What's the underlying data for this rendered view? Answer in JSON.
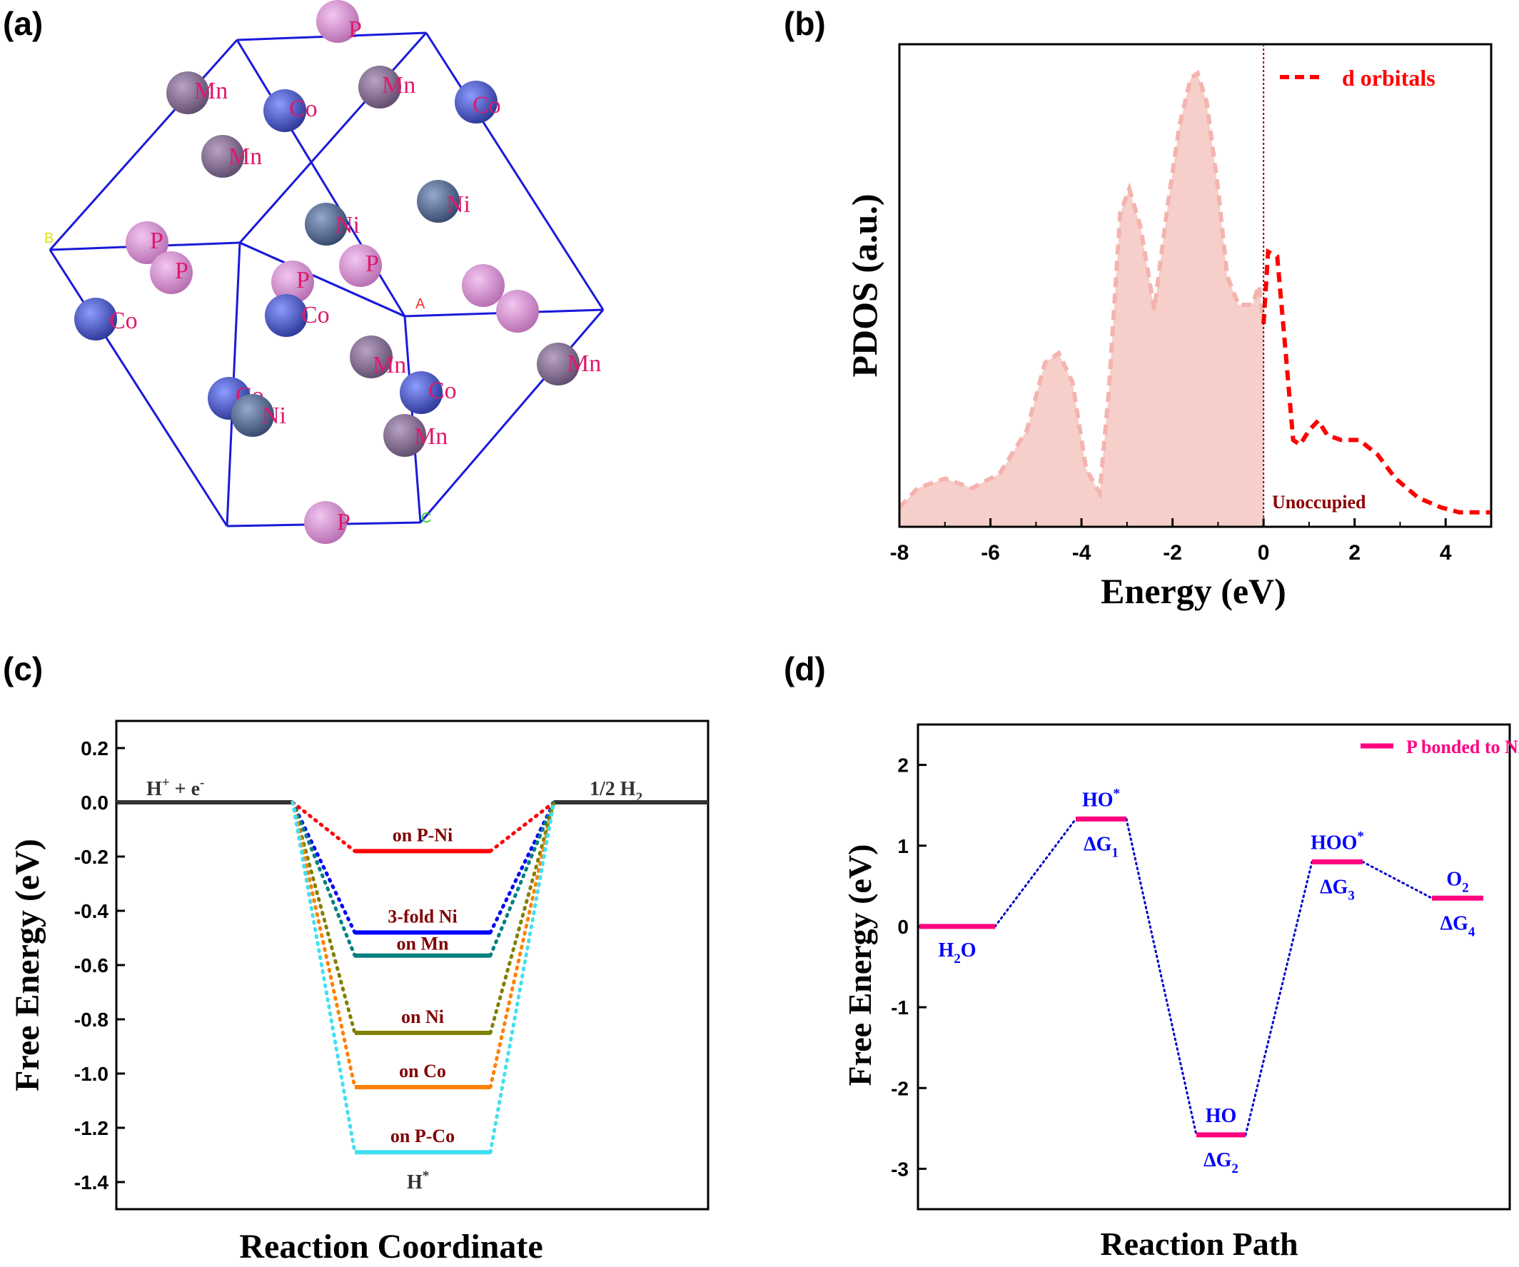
{
  "panels": {
    "a": "(a)",
    "b": "(b)",
    "c": "(c)",
    "d": "(d)"
  },
  "crystal": {
    "axis_labels": {
      "a": "A",
      "b": "B",
      "c": "C"
    },
    "atoms": [
      {
        "element": "P"
      },
      {
        "element": "Mn"
      },
      {
        "element": "Co"
      },
      {
        "element": "Mn"
      },
      {
        "element": "Co"
      },
      {
        "element": "Mn"
      },
      {
        "element": "Ni"
      },
      {
        "element": "Ni"
      },
      {
        "element": "P"
      },
      {
        "element": "P"
      },
      {
        "element": "P"
      },
      {
        "element": "P"
      },
      {
        "element": "P"
      },
      {
        "element": "Co"
      },
      {
        "element": "Co"
      },
      {
        "element": "P"
      },
      {
        "element": "Mn"
      },
      {
        "element": "Mn"
      },
      {
        "element": "Co"
      },
      {
        "element": "Ni"
      },
      {
        "element": "Co"
      },
      {
        "element": "Mn"
      },
      {
        "element": "P"
      }
    ],
    "colors": {
      "P": "#d98fd6",
      "Mn": "#8a6e96",
      "Co": "#4f5fcf",
      "Ni": "#5a6f9a",
      "label": "#e0196b",
      "cell": "#1a1adb"
    }
  },
  "chart_data": [
    {
      "panel": "b",
      "type": "area",
      "xlabel": "Energy (eV)",
      "ylabel": "PDOS (a.u.)",
      "xlim": [
        -8,
        5
      ],
      "xticks": [
        "-8",
        "-6",
        "-4",
        "-2",
        "0",
        "2",
        "4"
      ],
      "legend": {
        "label": "d orbitals",
        "position": "top-right"
      },
      "annotation": "Unoccupied",
      "fermi_level": 0,
      "series": [
        {
          "name": "d orbitals",
          "color": "#ff0000",
          "x": [
            -8.0,
            -7.6,
            -7.0,
            -6.4,
            -5.8,
            -5.2,
            -4.8,
            -4.5,
            -4.2,
            -3.9,
            -3.6,
            -3.4,
            -3.15,
            -2.95,
            -2.7,
            -2.4,
            -2.1,
            -1.85,
            -1.6,
            -1.45,
            -1.25,
            -1.0,
            -0.8,
            -0.55,
            -0.25,
            -0.1,
            0.0,
            0.1,
            0.3,
            0.45,
            0.65,
            0.8,
            1.0,
            1.2,
            1.4,
            1.7,
            2.1,
            2.5,
            2.9,
            3.4,
            3.9,
            4.3,
            5.0
          ],
          "y": [
            0.04,
            0.08,
            0.1,
            0.08,
            0.11,
            0.2,
            0.34,
            0.36,
            0.3,
            0.12,
            0.07,
            0.28,
            0.65,
            0.7,
            0.62,
            0.45,
            0.67,
            0.83,
            0.93,
            0.94,
            0.88,
            0.7,
            0.52,
            0.46,
            0.46,
            0.5,
            0.42,
            0.57,
            0.56,
            0.4,
            0.18,
            0.17,
            0.2,
            0.22,
            0.19,
            0.18,
            0.18,
            0.15,
            0.1,
            0.06,
            0.04,
            0.03,
            0.03
          ]
        }
      ]
    },
    {
      "panel": "c",
      "type": "line",
      "xlabel": "Reaction Coordinate",
      "ylabel": "Free Energy (eV)",
      "ylim": [
        -1.5,
        0.3
      ],
      "yticks": [
        "0.2",
        "0.0",
        "-0.2",
        "-0.4",
        "-0.6",
        "-0.8",
        "-1.0",
        "-1.2",
        "-1.4"
      ],
      "start_label": "H⁺ + e⁻",
      "start_label_base": "H",
      "start_label_sup1": "+",
      "start_label_mid": " + e",
      "start_label_sup2": "-",
      "end_label_base": "1/2 H",
      "end_label_sub": "2",
      "intermediate_base": "H",
      "intermediate_sup": "*",
      "initial_energy": 0.0,
      "final_energy": 0.0,
      "series": [
        {
          "name": "on P-Ni",
          "value": -0.18,
          "color": "#ff0000"
        },
        {
          "name": "3-fold Ni",
          "value": -0.48,
          "color": "#0000ff"
        },
        {
          "name": "on Mn",
          "value": -0.565,
          "color": "#008080"
        },
        {
          "name": "on Ni",
          "value": -0.85,
          "color": "#808000"
        },
        {
          "name": "on Co",
          "value": -1.05,
          "color": "#ff8000"
        },
        {
          "name": "on P-Co",
          "value": -1.29,
          "color": "#40e0f0"
        }
      ],
      "baseline_color": "#333333",
      "label_color": "#800000"
    },
    {
      "panel": "d",
      "type": "line",
      "xlabel": "Reaction Path",
      "ylabel": "Free Energy (eV)",
      "ylim": [
        -3.5,
        2.5
      ],
      "yticks": [
        "2",
        "1",
        "0",
        "-1",
        "-2",
        "-3"
      ],
      "legend": {
        "label": "P bonded to Ni site",
        "position": "top-right"
      },
      "series": [
        {
          "name": "P bonded to Ni site",
          "color": "#ff0080",
          "values": [
            0.0,
            1.33,
            -2.58,
            0.8,
            0.35
          ]
        }
      ],
      "step_labels": [
        {
          "base": "H",
          "sub": "2",
          "tail": "O",
          "sup": ""
        },
        {
          "base": "HO",
          "sub": "",
          "tail": "",
          "sup": "*"
        },
        {
          "base": "HO",
          "sub": "",
          "tail": "",
          "sup": ""
        },
        {
          "base": "HOO",
          "sub": "",
          "tail": "",
          "sup": "*"
        },
        {
          "base": "O",
          "sub": "2",
          "tail": "",
          "sup": ""
        }
      ],
      "delta_labels": [
        {
          "base": "ΔG",
          "sub": "1"
        },
        {
          "base": "ΔG",
          "sub": "2"
        },
        {
          "base": "ΔG",
          "sub": "3"
        },
        {
          "base": "ΔG",
          "sub": "4"
        }
      ],
      "connector_color": "#0000cc",
      "label_color": "#0000ff"
    }
  ]
}
